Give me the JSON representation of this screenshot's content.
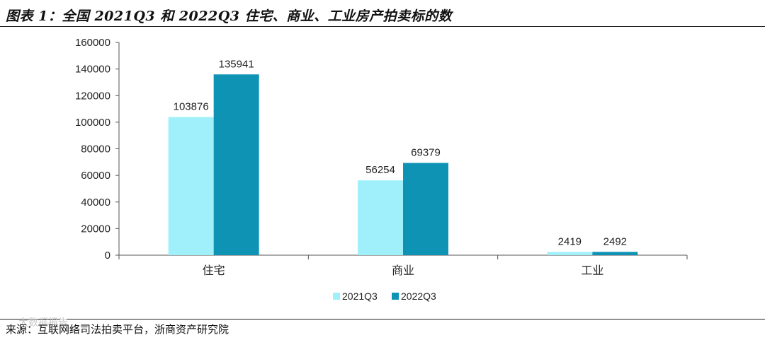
{
  "title": "图表 1：全国 2021Q3 和 2022Q3 住宅、商业、工业房产拍卖标的数",
  "source": "来源：互联网络司法拍卖平台，浙商资产研究院",
  "watermark": "大数据报告",
  "colors": {
    "series_2021": "#9ff0fb",
    "series_2022": "#0f93b5",
    "axis": "#555555"
  },
  "chart_data": {
    "type": "bar",
    "title": "",
    "xlabel": "",
    "ylabel": "",
    "categories": [
      "住宅",
      "商业",
      "工业"
    ],
    "series": [
      {
        "name": "2021Q3",
        "values": [
          103876,
          56254,
          2419
        ]
      },
      {
        "name": "2022Q3",
        "values": [
          135941,
          69379,
          2492
        ]
      }
    ],
    "ylim": [
      0,
      160000
    ],
    "yticks": [
      0,
      20000,
      40000,
      60000,
      80000,
      100000,
      120000,
      140000,
      160000
    ],
    "grid": false,
    "data_labels": true,
    "legend": "bottom-center"
  }
}
